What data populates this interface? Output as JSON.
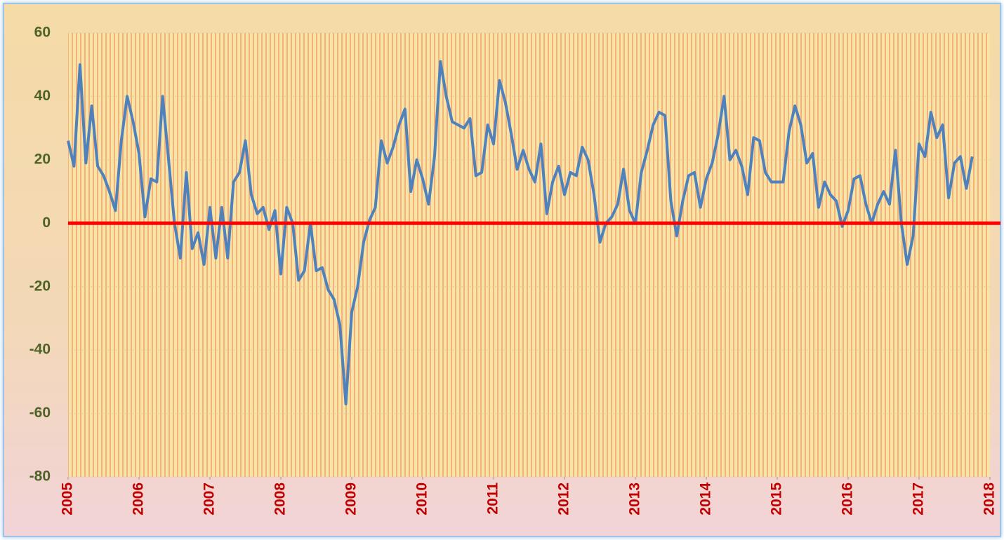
{
  "chart_data": {
    "type": "line",
    "x": [
      2005,
      2005.083,
      2005.167,
      2005.25,
      2005.333,
      2005.417,
      2005.5,
      2005.583,
      2005.667,
      2005.75,
      2005.833,
      2005.917,
      2006,
      2006.083,
      2006.167,
      2006.25,
      2006.333,
      2006.417,
      2006.5,
      2006.583,
      2006.667,
      2006.75,
      2006.833,
      2006.917,
      2007,
      2007.083,
      2007.167,
      2007.25,
      2007.333,
      2007.417,
      2007.5,
      2007.583,
      2007.667,
      2007.75,
      2007.833,
      2007.917,
      2008,
      2008.083,
      2008.167,
      2008.25,
      2008.333,
      2008.417,
      2008.5,
      2008.583,
      2008.667,
      2008.75,
      2008.833,
      2008.917,
      2009,
      2009.083,
      2009.167,
      2009.25,
      2009.333,
      2009.417,
      2009.5,
      2009.583,
      2009.667,
      2009.75,
      2009.833,
      2009.917,
      2010,
      2010.083,
      2010.167,
      2010.25,
      2010.333,
      2010.417,
      2010.5,
      2010.583,
      2010.667,
      2010.75,
      2010.833,
      2010.917,
      2011,
      2011.083,
      2011.167,
      2011.25,
      2011.333,
      2011.417,
      2011.5,
      2011.583,
      2011.667,
      2011.75,
      2011.833,
      2011.917,
      2012,
      2012.083,
      2012.167,
      2012.25,
      2012.333,
      2012.417,
      2012.5,
      2012.583,
      2012.667,
      2012.75,
      2012.833,
      2012.917,
      2013,
      2013.083,
      2013.167,
      2013.25,
      2013.333,
      2013.417,
      2013.5,
      2013.583,
      2013.667,
      2013.75,
      2013.833,
      2013.917,
      2014,
      2014.083,
      2014.167,
      2014.25,
      2014.333,
      2014.417,
      2014.5,
      2014.583,
      2014.667,
      2014.75,
      2014.833,
      2014.917,
      2015,
      2015.083,
      2015.167,
      2015.25,
      2015.333,
      2015.417,
      2015.5,
      2015.583,
      2015.667,
      2015.75,
      2015.833,
      2015.917,
      2016,
      2016.083,
      2016.167,
      2016.25,
      2016.333,
      2016.417,
      2016.5,
      2016.583,
      2016.667,
      2016.75,
      2016.833,
      2016.917,
      2017,
      2017.083,
      2017.167,
      2017.25,
      2017.333,
      2017.417,
      2017.5,
      2017.583,
      2017.667,
      2017.75
    ],
    "series": [
      {
        "color": "#4f81bd",
        "values": [
          26,
          18,
          50,
          19,
          37,
          18,
          15,
          10,
          4,
          26,
          40,
          32,
          22,
          2,
          14,
          13,
          40,
          20,
          0,
          -11,
          16,
          -8,
          -3,
          -13,
          5,
          -11,
          5,
          -11,
          13,
          16,
          26,
          9,
          3,
          5,
          -2,
          4,
          -16,
          5,
          0,
          -18,
          -15,
          0,
          -15,
          -14,
          -21,
          -24,
          -32,
          -57,
          -28,
          -20,
          -6,
          1,
          5,
          26,
          19,
          24,
          31,
          36,
          10,
          20,
          14,
          6,
          21,
          51,
          40,
          32,
          31,
          30,
          33,
          15,
          16,
          31,
          25,
          45,
          38,
          28,
          17,
          23,
          17,
          13,
          25,
          3,
          13,
          18,
          9,
          16,
          15,
          24,
          20,
          9,
          -6,
          0,
          2,
          6,
          17,
          4,
          0,
          16,
          23,
          31,
          35,
          34,
          7,
          -4,
          7,
          15,
          16,
          5,
          14,
          19,
          28,
          40,
          20,
          23,
          18,
          9,
          27,
          26,
          16,
          13,
          13,
          13,
          29,
          37,
          31,
          19,
          22,
          5,
          13,
          9,
          7,
          -1,
          4,
          14,
          15,
          6,
          0,
          6,
          10,
          6,
          23,
          0,
          -13,
          -4,
          25,
          21,
          35,
          27,
          31,
          8,
          19,
          21,
          11,
          21
        ]
      }
    ],
    "xlim": [
      2005,
      2018
    ],
    "xticks": [
      2005,
      2006,
      2007,
      2008,
      2009,
      2010,
      2011,
      2012,
      2013,
      2014,
      2015,
      2016,
      2017,
      2018
    ],
    "ylim": [
      -80,
      60
    ],
    "yticks": [
      -80,
      -60,
      -40,
      -20,
      0,
      20,
      40,
      60
    ],
    "reference_line": {
      "value": 0,
      "color": "#ff0000"
    },
    "grid": true
  }
}
